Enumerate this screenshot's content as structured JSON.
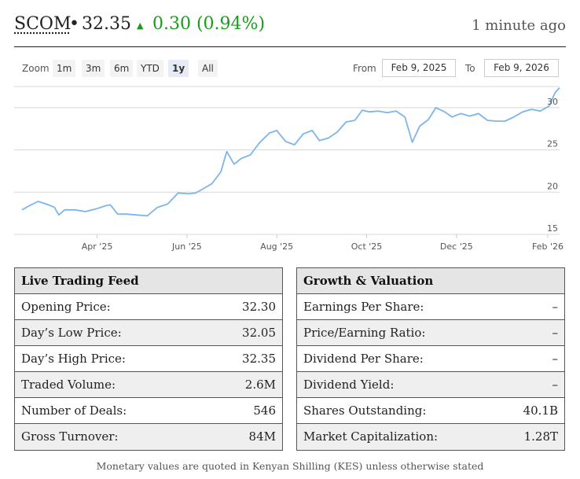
{
  "header": {
    "ticker": "SCOM",
    "separator": "•",
    "price": "32.35",
    "arrow": "▲",
    "change": "0.30 (0.94%)",
    "updated": "1 minute ago",
    "change_color": "#1a9c1a"
  },
  "zoom": {
    "label": "Zoom",
    "options": [
      "1m",
      "3m",
      "6m",
      "YTD",
      "1y",
      "All"
    ],
    "selected": "1y"
  },
  "range": {
    "from_label": "From",
    "from_value": "Feb 9, 2025",
    "to_label": "To",
    "to_value": "Feb 9, 2026"
  },
  "chart_data": {
    "type": "line",
    "title": "",
    "xlabel": "",
    "ylabel": "",
    "x_tick_labels": [
      "Apr '25",
      "Jun '25",
      "Aug '25",
      "Oct '25",
      "Dec '25",
      "Feb '26"
    ],
    "y_tick_labels": [
      "15",
      "20",
      "25",
      "30"
    ],
    "ylim": [
      15,
      32.5
    ],
    "grid": true,
    "line_color": "#7cb5ec",
    "series": [
      {
        "points": [
          [
            "2025-02-09",
            17.9
          ],
          [
            "2025-02-14",
            18.4
          ],
          [
            "2025-02-20",
            18.9
          ],
          [
            "2025-02-27",
            18.5
          ],
          [
            "2025-03-03",
            18.2
          ],
          [
            "2025-03-06",
            17.3
          ],
          [
            "2025-03-10",
            17.9
          ],
          [
            "2025-03-17",
            17.9
          ],
          [
            "2025-03-24",
            17.7
          ],
          [
            "2025-03-31",
            18.0
          ],
          [
            "2025-04-07",
            18.4
          ],
          [
            "2025-04-10",
            18.5
          ],
          [
            "2025-04-15",
            17.4
          ],
          [
            "2025-04-21",
            17.4
          ],
          [
            "2025-04-28",
            17.3
          ],
          [
            "2025-05-05",
            17.2
          ],
          [
            "2025-05-12",
            18.2
          ],
          [
            "2025-05-19",
            18.6
          ],
          [
            "2025-05-26",
            19.9
          ],
          [
            "2025-06-02",
            19.8
          ],
          [
            "2025-06-07",
            19.9
          ],
          [
            "2025-06-12",
            20.4
          ],
          [
            "2025-06-18",
            21.0
          ],
          [
            "2025-06-24",
            22.4
          ],
          [
            "2025-06-28",
            24.8
          ],
          [
            "2025-07-03",
            23.3
          ],
          [
            "2025-07-08",
            24.0
          ],
          [
            "2025-07-14",
            24.4
          ],
          [
            "2025-07-20",
            25.8
          ],
          [
            "2025-07-27",
            27.0
          ],
          [
            "2025-08-01",
            27.3
          ],
          [
            "2025-08-07",
            26.0
          ],
          [
            "2025-08-13",
            25.6
          ],
          [
            "2025-08-19",
            26.9
          ],
          [
            "2025-08-25",
            27.3
          ],
          [
            "2025-08-30",
            26.1
          ],
          [
            "2025-09-05",
            26.4
          ],
          [
            "2025-09-11",
            27.1
          ],
          [
            "2025-09-17",
            28.3
          ],
          [
            "2025-09-23",
            28.5
          ],
          [
            "2025-09-28",
            29.7
          ],
          [
            "2025-10-03",
            29.5
          ],
          [
            "2025-10-09",
            29.6
          ],
          [
            "2025-10-15",
            29.4
          ],
          [
            "2025-10-21",
            29.6
          ],
          [
            "2025-10-27",
            28.9
          ],
          [
            "2025-11-01",
            25.9
          ],
          [
            "2025-11-06",
            27.8
          ],
          [
            "2025-11-12",
            28.6
          ],
          [
            "2025-11-17",
            30.0
          ],
          [
            "2025-11-23",
            29.5
          ],
          [
            "2025-11-28",
            28.9
          ],
          [
            "2025-12-04",
            29.3
          ],
          [
            "2025-12-10",
            29.0
          ],
          [
            "2025-12-16",
            29.3
          ],
          [
            "2025-12-22",
            28.5
          ],
          [
            "2025-12-28",
            28.4
          ],
          [
            "2026-01-03",
            28.4
          ],
          [
            "2026-01-09",
            28.9
          ],
          [
            "2026-01-15",
            29.5
          ],
          [
            "2026-01-21",
            29.8
          ],
          [
            "2026-01-27",
            29.6
          ],
          [
            "2026-02-02",
            30.2
          ],
          [
            "2026-02-06",
            31.8
          ],
          [
            "2026-02-09",
            32.35
          ]
        ]
      }
    ]
  },
  "trading": {
    "title": "Live Trading Feed",
    "rows": [
      {
        "label": "Opening Price:",
        "value": "32.30"
      },
      {
        "label": "Day’s Low Price:",
        "value": "32.05"
      },
      {
        "label": "Day’s High Price:",
        "value": "32.35"
      },
      {
        "label": "Traded Volume:",
        "value": "2.6M"
      },
      {
        "label": "Number of Deals:",
        "value": "546"
      },
      {
        "label": "Gross Turnover:",
        "value": "84M"
      }
    ]
  },
  "valuation": {
    "title": "Growth & Valuation",
    "rows": [
      {
        "label": "Earnings Per Share:",
        "value": "–"
      },
      {
        "label": "Price/Earning Ratio:",
        "value": "–"
      },
      {
        "label": "Dividend Per Share:",
        "value": "–"
      },
      {
        "label": "Dividend Yield:",
        "value": "–"
      },
      {
        "label": "Shares Outstanding:",
        "value": "40.1B"
      },
      {
        "label": "Market Capitalization:",
        "value": "1.28T"
      }
    ]
  },
  "footnote": "Monetary values are quoted in Kenyan Shilling (KES) unless otherwise stated"
}
